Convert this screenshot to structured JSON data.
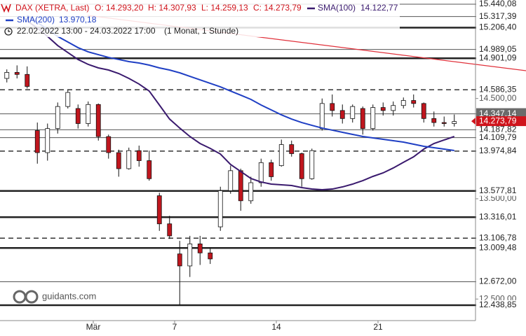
{
  "chart_data": {
    "type": "candlestick",
    "legend": {
      "instrument": "DAX (XETRA, Last)",
      "ohlc": [
        "O: 14.293,20",
        "H: 14.307,93",
        "L: 14.259,13",
        "C: 14.273,79"
      ],
      "period": "22.02.2022 13:00 - 24.03.2022 17:00",
      "interval": "(1 Monat, 1 Stunde)"
    },
    "watermark": "guidants.com",
    "categories": [
      null,
      null,
      null,
      null,
      null,
      null,
      null,
      null,
      null,
      "Mär",
      null,
      null,
      null,
      null,
      null,
      null,
      null,
      "7",
      null,
      null,
      null,
      null,
      null,
      null,
      null,
      null,
      null,
      "14",
      null,
      null,
      null,
      null,
      null,
      null,
      null,
      null,
      null,
      "21",
      null,
      null,
      null,
      null,
      null,
      null,
      null
    ],
    "open": [
      14700,
      14760,
      14740,
      14180,
      13960,
      14200,
      14420,
      14400,
      14250,
      14440,
      14120,
      13960,
      13800,
      13980,
      13880,
      13530,
      13250,
      12950,
      12830,
      13050,
      12960,
      13220,
      13580,
      13780,
      13480,
      13660,
      13860,
      13830,
      14040,
      13950,
      13700,
      14200,
      14450,
      14380,
      14300,
      14400,
      14200,
      14410,
      14380,
      14430,
      14480,
      14450,
      14300,
      14260,
      14250
    ],
    "high": [
      14790,
      14830,
      14820,
      14260,
      14250,
      14460,
      14590,
      14440,
      14470,
      14450,
      14140,
      13990,
      14010,
      14030,
      13980,
      13560,
      13330,
      13080,
      13130,
      13130,
      13010,
      13620,
      13830,
      13800,
      13720,
      13900,
      13890,
      14090,
      14080,
      13960,
      14000,
      14500,
      14540,
      14440,
      14440,
      14420,
      14440,
      14460,
      14470,
      14510,
      14540,
      14460,
      14370,
      14320,
      14340
    ],
    "low": [
      14660,
      14700,
      14600,
      13850,
      13880,
      14150,
      14400,
      14200,
      14220,
      14080,
      13900,
      13720,
      13790,
      13820,
      13680,
      13180,
      13100,
      12440,
      12720,
      12840,
      12850,
      13180,
      13550,
      13380,
      13450,
      13620,
      13680,
      13820,
      13920,
      13620,
      13690,
      14180,
      14320,
      14250,
      14260,
      14140,
      14180,
      14330,
      14330,
      14400,
      14410,
      14260,
      14220,
      14220,
      14220
    ],
    "close": [
      14760,
      14740,
      14620,
      13960,
      14200,
      14420,
      14560,
      14250,
      14440,
      14120,
      13960,
      13800,
      13980,
      13880,
      13700,
      13250,
      13130,
      12830,
      13050,
      12960,
      12900,
      13580,
      13780,
      13480,
      13660,
      13860,
      13720,
      14040,
      13950,
      13700,
      13980,
      14450,
      14380,
      14300,
      14420,
      14200,
      14410,
      14380,
      14430,
      14480,
      14450,
      14300,
      14260,
      14250,
      14270
    ],
    "up_color": "#ffffff",
    "down_color": "#c0161e",
    "series": [
      {
        "name": "SMA(100)",
        "legend_value": "14.122,77",
        "color": "#3a1a6e",
        "values": [
          null,
          null,
          15272,
          15203,
          15119,
          15028,
          14958,
          14889,
          14840,
          14805,
          14784,
          14749,
          14700,
          14644,
          14574,
          14435,
          14295,
          14205,
          14121,
          14051,
          14002,
          13946,
          13842,
          13772,
          13702,
          13667,
          13646,
          13639,
          13632,
          13611,
          13597,
          13590,
          13597,
          13618,
          13646,
          13681,
          13723,
          13758,
          13807,
          13863,
          13918,
          13995,
          14051,
          14086,
          14121
        ]
      },
      {
        "name": "SMA(200)",
        "legend_value": "13.970,18",
        "color": "#1f3fc4",
        "values": [
          null,
          null,
          15328,
          15258,
          15189,
          15119,
          15063,
          15007,
          14965,
          14937,
          14909,
          14889,
          14868,
          14854,
          14833,
          14805,
          14784,
          14756,
          14721,
          14686,
          14651,
          14616,
          14574,
          14533,
          14491,
          14435,
          14386,
          14337,
          14295,
          14260,
          14232,
          14205,
          14184,
          14163,
          14142,
          14121,
          14107,
          14093,
          14079,
          14065,
          14044,
          14023,
          14009,
          13995,
          13981
        ]
      }
    ],
    "ylim": [
      12285,
      15482
    ],
    "yticks": [
      {
        "value": 14500,
        "label": "14.500,00"
      },
      {
        "value": 13500,
        "label": "13.500,00"
      },
      {
        "value": 12500,
        "label": "12.500,00"
      }
    ],
    "levels": [
      {
        "value": 15440.08,
        "label": "15.440,08",
        "style": "thin"
      },
      {
        "value": 15317.39,
        "label": "15.317,39",
        "style": "thin"
      },
      {
        "value": 15206.4,
        "label": "15.206,40",
        "style": "thick"
      },
      {
        "value": 14989.05,
        "label": "14.989,05",
        "style": "thin"
      },
      {
        "value": 14901.09,
        "label": "14.901,09",
        "style": "thick"
      },
      {
        "value": 14586.35,
        "label": "14.586,35",
        "style": "dashed"
      },
      {
        "value": 14347.14,
        "label": "14.347,14",
        "style": "current"
      },
      {
        "value": 14187.82,
        "label": "14.187,82",
        "style": "thin"
      },
      {
        "value": 14109.79,
        "label": "14.109,79",
        "style": "thin"
      },
      {
        "value": 13974.84,
        "label": "13.974,84",
        "style": "dashed"
      },
      {
        "value": 13577.81,
        "label": "13.577,81",
        "style": "thick"
      },
      {
        "value": 13316.01,
        "label": "13.316,01",
        "style": "thick"
      },
      {
        "value": 13106.78,
        "label": "13.106,78",
        "style": "dashed"
      },
      {
        "value": 13009.48,
        "label": "13.009,48",
        "style": "thick"
      },
      {
        "value": 12672.0,
        "label": "12.672,00",
        "style": "thin"
      },
      {
        "value": 12438.85,
        "label": "12.438,85",
        "style": "thick"
      }
    ],
    "last_price": {
      "value": 14273.79,
      "label": "14.273,79",
      "color": "#d0141c"
    }
  }
}
